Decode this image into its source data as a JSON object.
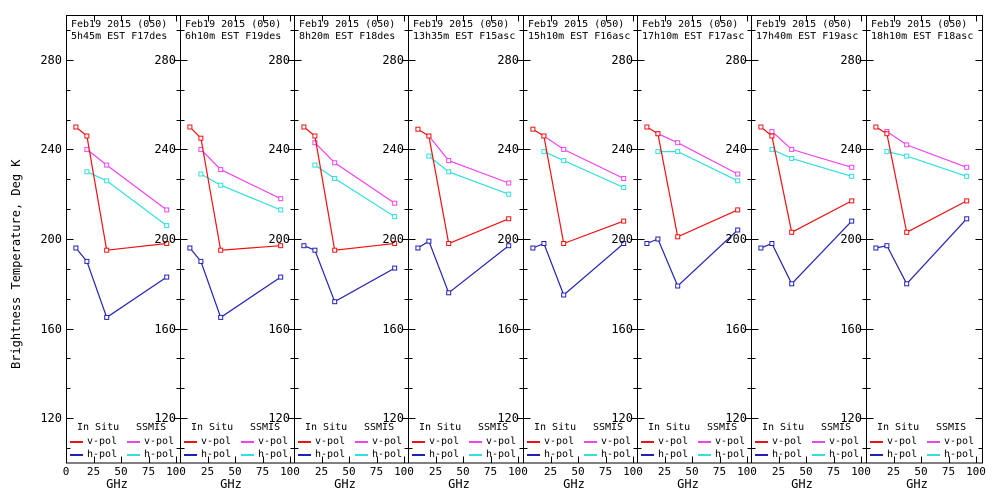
{
  "chart_data": {
    "type": "line",
    "shared": {
      "ylabel": "Brightness Temperature, Deg K",
      "xlabel": "GHz",
      "xlim": [
        0,
        103.6
      ],
      "ylim": [
        100,
        300
      ],
      "xticks": [
        0,
        25,
        50,
        75,
        100
      ],
      "yticks": [
        280,
        240,
        200,
        160,
        120
      ],
      "grid": false,
      "legend_position": "bottom-inside-each-panel",
      "in_situ_ghz": [
        9,
        19,
        37,
        91.5
      ],
      "ssmis_ghz": [
        19,
        37,
        91.5
      ],
      "legend": {
        "group1": "In Situ",
        "group2": "SSMIS",
        "vpol": "v-pol",
        "hpol": "h-pol"
      },
      "colors": {
        "in_situ_v": "#ee1111",
        "in_situ_h": "#2222b2",
        "ssmis_v": "#ee44ee",
        "ssmis_h": "#33dede",
        "axis": "#000000"
      }
    },
    "panels": [
      {
        "title1": "Feb19 2015 (050)",
        "title2": "5h45m EST F17des",
        "in_situ_v": [
          250,
          246,
          195,
          198
        ],
        "in_situ_h": [
          196,
          190,
          165,
          183
        ],
        "ssmis_v": [
          240,
          233,
          213
        ],
        "ssmis_h": [
          230,
          226,
          206
        ]
      },
      {
        "title1": "Feb19 2015 (050)",
        "title2": "6h10m EST F19des",
        "in_situ_v": [
          250,
          245,
          195,
          197
        ],
        "in_situ_h": [
          196,
          190,
          165,
          183
        ],
        "ssmis_v": [
          240,
          231,
          218
        ],
        "ssmis_h": [
          229,
          224,
          213
        ]
      },
      {
        "title1": "Feb19 2015 (050)",
        "title2": "8h20m EST F18des",
        "in_situ_v": [
          250,
          246,
          195,
          198
        ],
        "in_situ_h": [
          197,
          195,
          172,
          187
        ],
        "ssmis_v": [
          243,
          234,
          216
        ],
        "ssmis_h": [
          233,
          227,
          210
        ]
      },
      {
        "title1": "Feb19 2015 (050)",
        "title2": "13h35m EST F15asc",
        "in_situ_v": [
          249,
          246,
          198,
          209
        ],
        "in_situ_h": [
          196,
          199,
          176,
          197
        ],
        "ssmis_v": [
          246,
          235,
          225
        ],
        "ssmis_h": [
          237,
          230,
          220
        ]
      },
      {
        "title1": "Feb19 2015 (050)",
        "title2": "15h10m EST F16asc",
        "in_situ_v": [
          249,
          246,
          198,
          208
        ],
        "in_situ_h": [
          196,
          198,
          175,
          198
        ],
        "ssmis_v": [
          246,
          240,
          227
        ],
        "ssmis_h": [
          239,
          235,
          223
        ]
      },
      {
        "title1": "Feb19 2015 (050)",
        "title2": "17h10m EST F17asc",
        "in_situ_v": [
          250,
          247,
          201,
          213
        ],
        "in_situ_h": [
          198,
          200,
          179,
          204
        ],
        "ssmis_v": [
          247,
          243,
          229
        ],
        "ssmis_h": [
          239,
          239,
          226
        ]
      },
      {
        "title1": "Feb19 2015 (050)",
        "title2": "17h40m EST F19asc",
        "in_situ_v": [
          250,
          246,
          203,
          217
        ],
        "in_situ_h": [
          196,
          198,
          180,
          208
        ],
        "ssmis_v": [
          248,
          240,
          232
        ],
        "ssmis_h": [
          240,
          236,
          228
        ]
      },
      {
        "title1": "Feb19 2015 (050)",
        "title2": "18h10m EST F18asc",
        "in_situ_v": [
          250,
          247,
          203,
          217
        ],
        "in_situ_h": [
          196,
          197,
          180,
          209
        ],
        "ssmis_v": [
          248,
          242,
          232
        ],
        "ssmis_h": [
          239,
          237,
          228
        ]
      }
    ]
  }
}
